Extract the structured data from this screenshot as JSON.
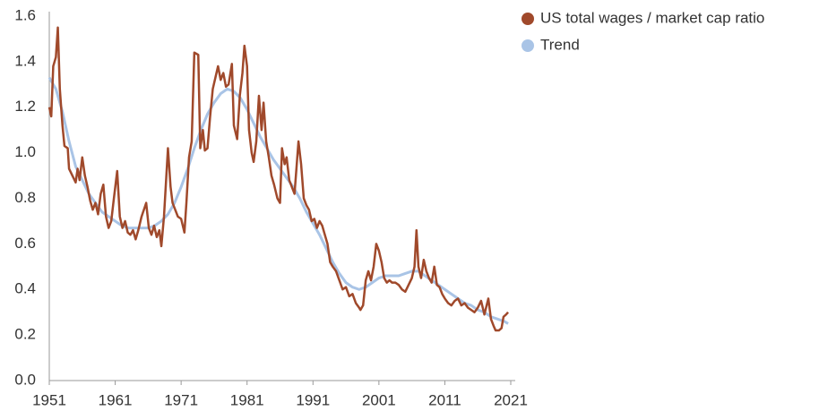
{
  "chart_data": {
    "type": "line",
    "xlim": [
      1951,
      2021
    ],
    "xticks": [
      1951,
      1961,
      1971,
      1981,
      1991,
      2001,
      2011,
      2021
    ],
    "ylim": [
      0,
      1.6
    ],
    "yticks": [
      {
        "value": 0,
        "label": "0.0"
      },
      0.2,
      0.4,
      0.6,
      0.8,
      {
        "value": 1,
        "label": "1.0"
      },
      1.2,
      1.4,
      1.6
    ],
    "grid": false,
    "legend": "top-right",
    "series": [
      {
        "name": "US total wages / market cap ratio",
        "color": "#a0492b",
        "x": [
          1951.0,
          1951.3,
          1951.6,
          1952.0,
          1952.3,
          1952.6,
          1953.0,
          1953.3,
          1953.8,
          1954.0,
          1954.5,
          1955.0,
          1955.3,
          1955.6,
          1956.0,
          1956.4,
          1956.8,
          1957.2,
          1957.6,
          1958.0,
          1958.4,
          1958.8,
          1959.2,
          1959.6,
          1960.0,
          1960.4,
          1960.8,
          1961.3,
          1961.7,
          1962.1,
          1962.5,
          1962.9,
          1963.3,
          1963.7,
          1964.1,
          1964.5,
          1965.0,
          1965.7,
          1966.1,
          1966.5,
          1966.9,
          1967.3,
          1967.7,
          1968.0,
          1968.4,
          1969.0,
          1969.4,
          1969.7,
          1970.1,
          1970.5,
          1971.0,
          1971.5,
          1971.8,
          1972.2,
          1972.6,
          1973.0,
          1973.6,
          1973.9,
          1974.3,
          1974.6,
          1975.0,
          1975.4,
          1975.8,
          1976.2,
          1976.6,
          1977.0,
          1977.4,
          1977.8,
          1978.2,
          1978.7,
          1979.0,
          1979.5,
          1979.9,
          1980.3,
          1980.6,
          1981.0,
          1981.3,
          1981.7,
          1982.0,
          1982.4,
          1982.8,
          1983.2,
          1983.5,
          1983.9,
          1984.3,
          1984.7,
          1985.1,
          1985.6,
          1986.0,
          1986.3,
          1986.7,
          1987.0,
          1987.4,
          1987.8,
          1988.2,
          1988.8,
          1989.2,
          1989.6,
          1990.0,
          1990.4,
          1990.8,
          1991.2,
          1991.6,
          1992.0,
          1992.4,
          1992.8,
          1993.2,
          1993.6,
          1994.0,
          1994.5,
          1995.0,
          1995.5,
          1996.0,
          1996.5,
          1997.0,
          1997.5,
          1998.0,
          1998.2,
          1998.6,
          1999.0,
          1999.4,
          1999.8,
          2000.2,
          2000.6,
          2001.0,
          2001.4,
          2001.8,
          2002.2,
          2002.6,
          2003.0,
          2003.5,
          2004.0,
          2004.5,
          2005.0,
          2005.5,
          2006.0,
          2006.4,
          2006.7,
          2007.0,
          2007.4,
          2007.8,
          2008.2,
          2008.6,
          2009.0,
          2009.4,
          2009.8,
          2010.2,
          2010.6,
          2011.0,
          2011.5,
          2012.0,
          2012.5,
          2013.0,
          2013.5,
          2014.0,
          2014.5,
          2015.0,
          2015.5,
          2016.0,
          2016.5,
          2017.0,
          2017.6,
          2018.0,
          2018.4,
          2018.7,
          2019.2,
          2019.6,
          2019.9,
          2020.3,
          2020.6
        ],
        "values": [
          1.2,
          1.16,
          1.38,
          1.42,
          1.55,
          1.28,
          1.12,
          1.03,
          1.02,
          0.93,
          0.9,
          0.87,
          0.93,
          0.88,
          0.98,
          0.9,
          0.85,
          0.79,
          0.75,
          0.78,
          0.73,
          0.82,
          0.86,
          0.72,
          0.67,
          0.7,
          0.8,
          0.92,
          0.72,
          0.67,
          0.7,
          0.65,
          0.64,
          0.66,
          0.62,
          0.66,
          0.72,
          0.78,
          0.67,
          0.64,
          0.68,
          0.63,
          0.66,
          0.59,
          0.72,
          1.02,
          0.85,
          0.78,
          0.75,
          0.72,
          0.71,
          0.65,
          0.78,
          0.98,
          1.05,
          1.44,
          1.43,
          1.02,
          1.1,
          1.01,
          1.02,
          1.16,
          1.28,
          1.33,
          1.38,
          1.32,
          1.35,
          1.29,
          1.3,
          1.39,
          1.12,
          1.06,
          1.25,
          1.35,
          1.47,
          1.38,
          1.1,
          1.0,
          0.96,
          1.05,
          1.25,
          1.1,
          1.22,
          1.05,
          0.98,
          0.9,
          0.86,
          0.8,
          0.78,
          1.02,
          0.95,
          0.98,
          0.88,
          0.85,
          0.82,
          1.05,
          0.95,
          0.8,
          0.77,
          0.75,
          0.7,
          0.71,
          0.67,
          0.7,
          0.68,
          0.64,
          0.6,
          0.52,
          0.5,
          0.48,
          0.44,
          0.4,
          0.41,
          0.37,
          0.38,
          0.34,
          0.32,
          0.31,
          0.33,
          0.44,
          0.48,
          0.44,
          0.5,
          0.6,
          0.57,
          0.52,
          0.45,
          0.43,
          0.44,
          0.43,
          0.43,
          0.42,
          0.4,
          0.39,
          0.42,
          0.45,
          0.5,
          0.66,
          0.5,
          0.45,
          0.53,
          0.48,
          0.45,
          0.43,
          0.5,
          0.42,
          0.41,
          0.38,
          0.36,
          0.34,
          0.33,
          0.35,
          0.36,
          0.33,
          0.34,
          0.32,
          0.31,
          0.3,
          0.32,
          0.35,
          0.29,
          0.36,
          0.27,
          0.24,
          0.22,
          0.22,
          0.23,
          0.28,
          0.29,
          0.3
        ]
      },
      {
        "name": "Trend",
        "color": "#a9c4e6",
        "x": [
          1951,
          1952,
          1953,
          1954,
          1955,
          1956,
          1957,
          1958,
          1959,
          1960,
          1961,
          1962,
          1963,
          1964,
          1965,
          1966,
          1967,
          1968,
          1969,
          1970,
          1971,
          1972,
          1973,
          1974,
          1975,
          1976,
          1977,
          1978,
          1979,
          1980,
          1981,
          1982,
          1983,
          1984,
          1985,
          1986,
          1987,
          1988,
          1989,
          1990,
          1991,
          1992,
          1993,
          1994,
          1995,
          1996,
          1997,
          1998,
          1999,
          2000,
          2001,
          2002,
          2003,
          2004,
          2005,
          2006,
          2007,
          2008,
          2009,
          2010,
          2011,
          2012,
          2013,
          2014,
          2015,
          2016,
          2017,
          2018,
          2019,
          2020,
          2020.6
        ],
        "values": [
          1.33,
          1.28,
          1.18,
          1.05,
          0.94,
          0.88,
          0.82,
          0.78,
          0.74,
          0.72,
          0.7,
          0.68,
          0.67,
          0.67,
          0.67,
          0.67,
          0.68,
          0.7,
          0.73,
          0.78,
          0.85,
          0.93,
          1.02,
          1.1,
          1.17,
          1.22,
          1.26,
          1.28,
          1.27,
          1.24,
          1.19,
          1.13,
          1.07,
          1.02,
          0.97,
          0.93,
          0.89,
          0.85,
          0.8,
          0.74,
          0.69,
          0.64,
          0.58,
          0.52,
          0.47,
          0.43,
          0.41,
          0.4,
          0.41,
          0.43,
          0.45,
          0.46,
          0.46,
          0.46,
          0.47,
          0.48,
          0.48,
          0.46,
          0.44,
          0.42,
          0.4,
          0.38,
          0.36,
          0.34,
          0.33,
          0.31,
          0.3,
          0.28,
          0.27,
          0.26,
          0.25
        ]
      }
    ]
  }
}
